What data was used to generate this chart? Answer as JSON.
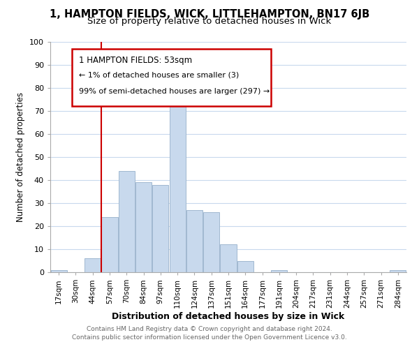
{
  "title": "1, HAMPTON FIELDS, WICK, LITTLEHAMPTON, BN17 6JB",
  "subtitle": "Size of property relative to detached houses in Wick",
  "xlabel": "Distribution of detached houses by size in Wick",
  "ylabel": "Number of detached properties",
  "footer_line1": "Contains HM Land Registry data © Crown copyright and database right 2024.",
  "footer_line2": "Contains public sector information licensed under the Open Government Licence v3.0.",
  "bar_labels": [
    "17sqm",
    "30sqm",
    "44sqm",
    "57sqm",
    "70sqm",
    "84sqm",
    "97sqm",
    "110sqm",
    "124sqm",
    "137sqm",
    "151sqm",
    "164sqm",
    "177sqm",
    "191sqm",
    "204sqm",
    "217sqm",
    "231sqm",
    "244sqm",
    "257sqm",
    "271sqm",
    "284sqm"
  ],
  "bar_values": [
    1,
    0,
    6,
    24,
    44,
    39,
    38,
    77,
    27,
    26,
    12,
    5,
    0,
    1,
    0,
    0,
    0,
    0,
    0,
    0,
    1
  ],
  "bar_color": "#c8d9ed",
  "bar_edge_color": "#a0b8d0",
  "grid_color": "#c8d9ed",
  "vline_color": "#cc0000",
  "annotation_box_color": "#ffffff",
  "annotation_border_color": "#cc0000",
  "annotation_title": "1 HAMPTON FIELDS: 53sqm",
  "annotation_line1": "← 1% of detached houses are smaller (3)",
  "annotation_line2": "99% of semi-detached houses are larger (297) →",
  "ylim": [
    0,
    100
  ],
  "yticks": [
    0,
    10,
    20,
    30,
    40,
    50,
    60,
    70,
    80,
    90,
    100
  ],
  "background_color": "#ffffff",
  "plot_background_color": "#ffffff",
  "title_fontsize": 10.5,
  "subtitle_fontsize": 9.5,
  "footer_color": "#666666"
}
